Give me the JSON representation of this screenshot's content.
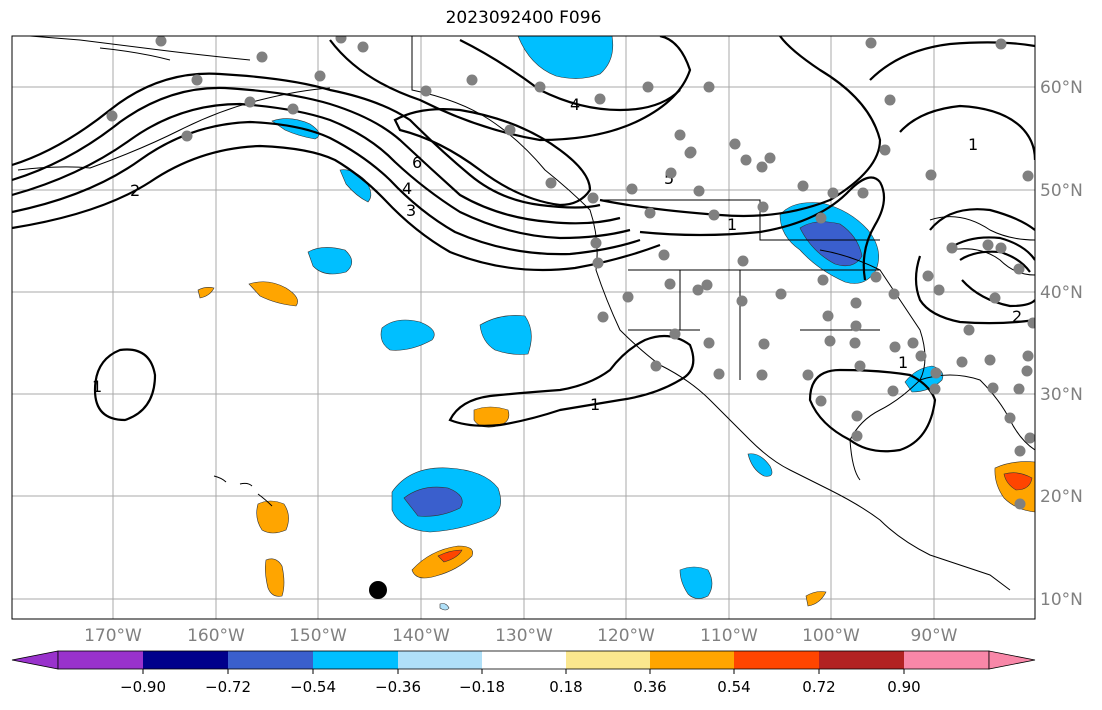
{
  "title": "2023092400 F096",
  "lon_labels": [
    "170°W",
    "160°W",
    "150°W",
    "140°W",
    "130°W",
    "120°W",
    "110°W",
    "100°W",
    "90°W"
  ],
  "lat_labels": [
    "60°N",
    "50°N",
    "40°N",
    "30°N",
    "20°N",
    "10°N"
  ],
  "colorbar": {
    "ticks": [
      "−0.90",
      "−0.72",
      "−0.54",
      "−0.36",
      "−0.18",
      "0.18",
      "0.36",
      "0.54",
      "0.72",
      "0.90"
    ],
    "colors": [
      "#9932CC",
      "#00008B",
      "#3A5FCD",
      "#00BFFF",
      "#B0E0F8",
      "#FFFFFF",
      "#FBE78E",
      "#FFA500",
      "#FF4500",
      "#B22222",
      "#F887A8"
    ]
  },
  "contour_labels": [
    "1",
    "2",
    "3",
    "4",
    "5",
    "6"
  ],
  "colors": {
    "gray_dot": "#808080",
    "contour": "#000000",
    "grid": "#a0a0a0"
  }
}
